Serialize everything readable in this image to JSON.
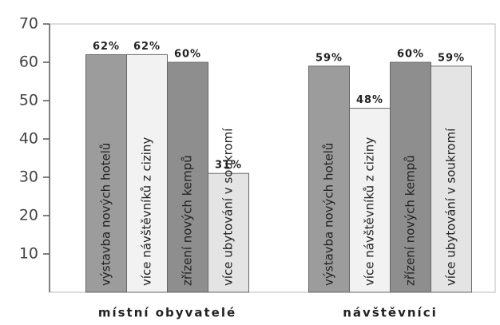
{
  "chart_data": {
    "type": "bar",
    "categories": [
      "místní obyvatelé",
      "návštěvníci"
    ],
    "series": [
      {
        "name": "výstavba nových hotelů",
        "color": "#9c9c9c",
        "values": [
          62,
          59
        ],
        "value_labels": [
          "62%",
          "59%"
        ]
      },
      {
        "name": "více návštěvníků z ciziny",
        "color": "#f2f2f2",
        "values": [
          62,
          48
        ],
        "value_labels": [
          "62%",
          "48%"
        ]
      },
      {
        "name": "zřízení nových kempů",
        "color": "#8e8e8e",
        "values": [
          60,
          60
        ],
        "value_labels": [
          "60%",
          "60%"
        ]
      },
      {
        "name": "více ubytování v soukromí",
        "color": "#e4e4e4",
        "values": [
          31,
          59
        ],
        "value_labels": [
          "31%",
          "59%"
        ]
      }
    ],
    "ylim": [
      0,
      70
    ],
    "yticks": [
      10,
      20,
      30,
      40,
      50,
      60,
      70
    ],
    "grid": false
  }
}
